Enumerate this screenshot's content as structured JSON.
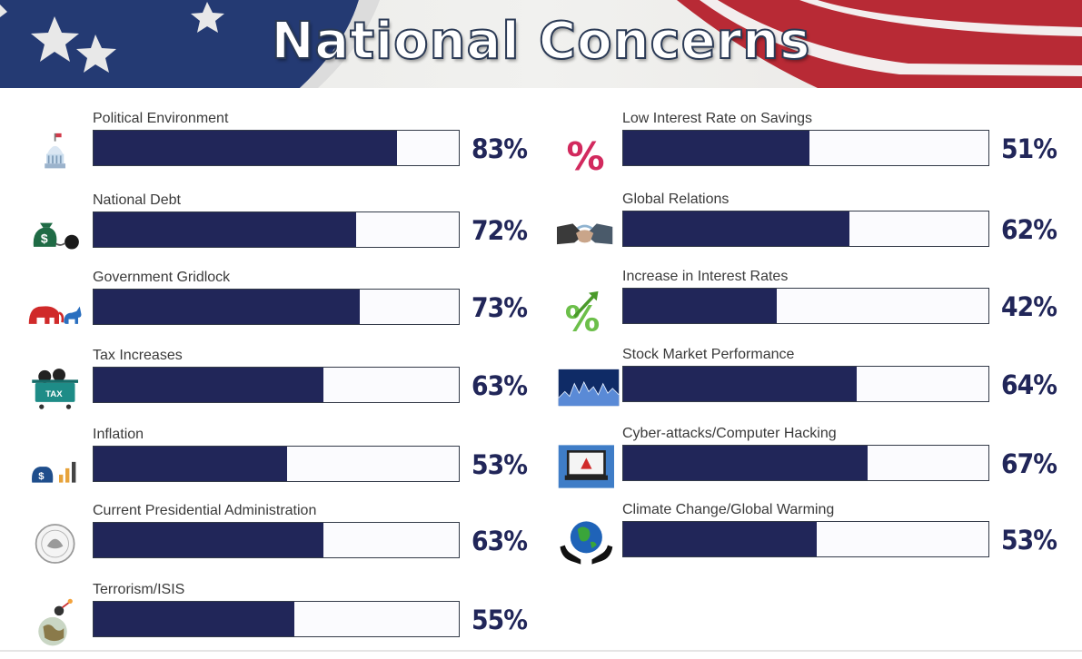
{
  "header": {
    "title": "National Concerns"
  },
  "colors": {
    "bar_fill": "#212659",
    "bar_empty": "#fbfbfe",
    "percent_text": "#212659"
  },
  "chart_data": {
    "type": "bar",
    "orientation": "horizontal",
    "ylim": [
      0,
      100
    ],
    "unit": "%",
    "legend": "none",
    "grid": false,
    "items": [
      {
        "label": "Political Environment",
        "value": 83,
        "value_label": "83%",
        "icon": "capitol-building-icon"
      },
      {
        "label": "National Debt",
        "value": 72,
        "value_label": "72%",
        "icon": "money-bag-ball-and-chain-icon"
      },
      {
        "label": "Government Gridlock",
        "value": 73,
        "value_label": "73%",
        "icon": "elephant-donkey-icon"
      },
      {
        "label": "Tax Increases",
        "value": 63,
        "value_label": "63%",
        "icon": "tax-cart-icon"
      },
      {
        "label": "Inflation",
        "value": 53,
        "value_label": "53%",
        "icon": "money-bag-growth-bars-icon"
      },
      {
        "label": "Current Presidential Administration",
        "value": 63,
        "value_label": "63%",
        "icon": "presidential-seal-icon"
      },
      {
        "label": "Terrorism/ISIS",
        "value": 55,
        "value_label": "55%",
        "icon": "globe-bomb-icon"
      },
      {
        "label": "Low Interest Rate on Savings",
        "value": 51,
        "value_label": "51%",
        "icon": "percent-sign-icon"
      },
      {
        "label": "Global Relations",
        "value": 62,
        "value_label": "62%",
        "icon": "handshake-icon"
      },
      {
        "label": "Increase in Interest Rates",
        "value": 42,
        "value_label": "42%",
        "icon": "percent-up-arrow-icon"
      },
      {
        "label": "Stock Market Performance",
        "value": 64,
        "value_label": "64%",
        "icon": "stock-chart-icon"
      },
      {
        "label": "Cyber-attacks/Computer Hacking",
        "value": 67,
        "value_label": "67%",
        "icon": "laptop-warning-icon"
      },
      {
        "label": "Climate Change/Global Warming",
        "value": 53,
        "value_label": "53%",
        "icon": "globe-in-hands-icon"
      }
    ]
  }
}
